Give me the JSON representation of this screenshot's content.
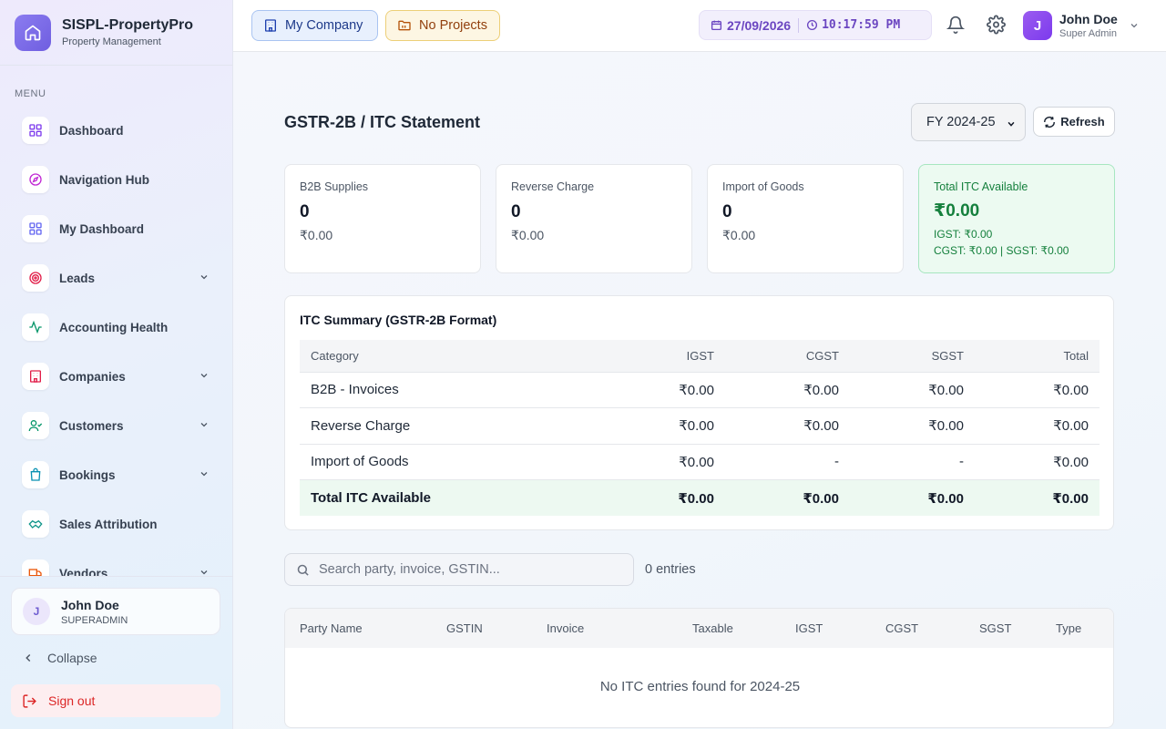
{
  "app": {
    "name": "SISPL-PropertyPro",
    "subtitle": "Property Management"
  },
  "sidebar": {
    "menu_label": "MENU",
    "items": [
      {
        "label": "Dashboard",
        "icon": "grid-icon",
        "color": "#7c3aed",
        "expandable": false
      },
      {
        "label": "Navigation Hub",
        "icon": "compass-icon",
        "color": "#c026d3",
        "expandable": false
      },
      {
        "label": "My Dashboard",
        "icon": "grid-icon",
        "color": "#6366f1",
        "expandable": false
      },
      {
        "label": "Leads",
        "icon": "target-icon",
        "color": "#e11d48",
        "expandable": true
      },
      {
        "label": "Accounting Health",
        "icon": "activity-icon",
        "color": "#059669",
        "expandable": false
      },
      {
        "label": "Companies",
        "icon": "building-icon",
        "color": "#e11d48",
        "expandable": true
      },
      {
        "label": "Customers",
        "icon": "user-check-icon",
        "color": "#059669",
        "expandable": true
      },
      {
        "label": "Bookings",
        "icon": "shopping-bag-icon",
        "color": "#0891b2",
        "expandable": true
      },
      {
        "label": "Sales Attribution",
        "icon": "handshake-icon",
        "color": "#0d9488",
        "expandable": false
      },
      {
        "label": "Vendors",
        "icon": "truck-icon",
        "color": "#ea580c",
        "expandable": true
      }
    ],
    "user": {
      "initial": "J",
      "name": "John Doe",
      "role": "SUPERADMIN"
    },
    "collapse_label": "Collapse",
    "signout_label": "Sign out"
  },
  "header": {
    "company_label": "My Company",
    "projects_label": "No Projects",
    "date": "27/09/2026",
    "time": "10:17:59 PM",
    "user": {
      "initial": "J",
      "name": "John Doe",
      "role": "Super Admin"
    }
  },
  "page": {
    "title": "GSTR-2B / ITC Statement",
    "fy_selected": "FY 2024-25",
    "refresh_label": "Refresh"
  },
  "stats": {
    "b2b": {
      "label": "B2B Supplies",
      "count": "0",
      "amount": "₹0.00"
    },
    "reverse": {
      "label": "Reverse Charge",
      "count": "0",
      "amount": "₹0.00"
    },
    "import": {
      "label": "Import of Goods",
      "count": "0",
      "amount": "₹0.00"
    },
    "total": {
      "label": "Total ITC Available",
      "amount": "₹0.00",
      "igst": "IGST: ₹0.00",
      "cgst_sgst": "CGST: ₹0.00 | SGST: ₹0.00"
    }
  },
  "summary": {
    "title": "ITC Summary (GSTR-2B Format)",
    "columns": [
      "Category",
      "IGST",
      "CGST",
      "SGST",
      "Total"
    ],
    "rows": [
      [
        "B2B - Invoices",
        "₹0.00",
        "₹0.00",
        "₹0.00",
        "₹0.00"
      ],
      [
        "Reverse Charge",
        "₹0.00",
        "₹0.00",
        "₹0.00",
        "₹0.00"
      ],
      [
        "Import of Goods",
        "₹0.00",
        "-",
        "-",
        "₹0.00"
      ]
    ],
    "total_row": [
      "Total ITC Available",
      "₹0.00",
      "₹0.00",
      "₹0.00",
      "₹0.00"
    ]
  },
  "entries": {
    "search_placeholder": "Search party, invoice, GSTIN...",
    "count_label": "0 entries",
    "columns": [
      "Party Name",
      "GSTIN",
      "Invoice",
      "Taxable",
      "IGST",
      "CGST",
      "SGST",
      "Type"
    ],
    "empty_message": "No ITC entries found for 2024-25"
  }
}
